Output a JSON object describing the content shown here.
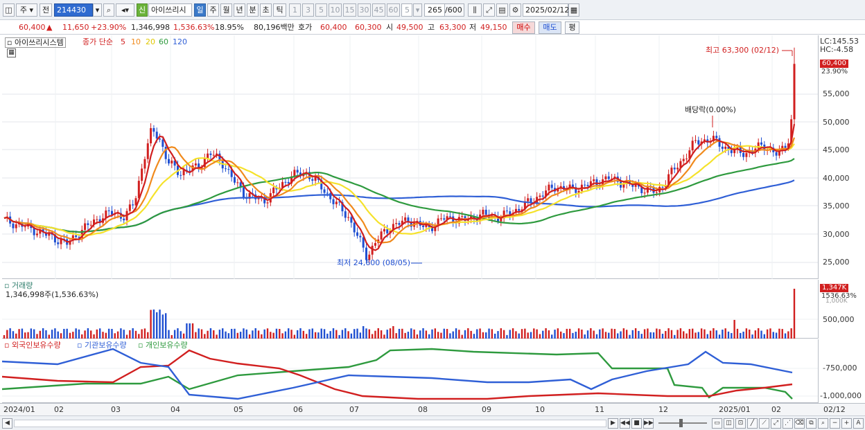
{
  "toolbar": {
    "period_ju": "주",
    "jeon": "전",
    "code": "214430",
    "sin": "신",
    "name": "아이쓰리시",
    "periods": [
      "일",
      "주",
      "월",
      "년",
      "분",
      "초",
      "틱"
    ],
    "intervals": [
      "1",
      "3",
      "5",
      "10",
      "15",
      "30",
      "45",
      "60"
    ],
    "interval_value": "5",
    "count": "265",
    "count_max": "/600",
    "date": "2025/02/12"
  },
  "quote": {
    "price": "60,400",
    "change_arrow": "▲",
    "change": "11,650",
    "change_pct": "+23.90%",
    "volume": "1,346,998",
    "volume_pct": "1,536.63%",
    "turnover": "18.95%",
    "amount": "80,196백만",
    "hoga_label": "호가",
    "hoga_ask": "60,400",
    "hoga_bid": "60,300",
    "open_label": "시",
    "open": "49,500",
    "high_label": "고",
    "high": "63,300",
    "low_label": "저",
    "low": "49,150",
    "buy_label": "매수",
    "sell_label": "매도",
    "avg_label": "평"
  },
  "price_panel": {
    "title": "아이쓰리시스템",
    "ma_label": "종가 단순",
    "ma_periods": [
      "5",
      "10",
      "20",
      "60",
      "120"
    ],
    "ma_colors": [
      "#d11f1f",
      "#f08a1c",
      "#f5e22b",
      "#2e9a3e",
      "#2f5fd6"
    ],
    "axis_lc": "LC:145.53",
    "axis_hc": "HC:-4.58",
    "current_tag": "60,400",
    "current_pct": "23.90%",
    "ticks": [
      "55,000",
      "50,000",
      "45,000",
      "40,000",
      "35,000",
      "30,000",
      "25,000"
    ],
    "annot_high": "최고 63,300 (02/12)",
    "annot_low": "최저 24,600 (08/05)",
    "annot_dividend": "배당락(0.00%)"
  },
  "volume_panel": {
    "title": "거래량",
    "value": "1,346,998주(1,536.63%)",
    "tag": "1,347K",
    "tag_pct": "1536.63%",
    "tick_hidden": "1,000K",
    "tick": "500,000"
  },
  "holdings_panel": {
    "legend": [
      "외국인보유수량",
      "기관보유수량",
      "개인보유수량"
    ],
    "colors": [
      "#d11f1f",
      "#2f5fd6",
      "#2e9a3e"
    ],
    "ticks": [
      "-750,000",
      "-1,000,000"
    ]
  },
  "dates": [
    "2024/01",
    "02",
    "03",
    "04",
    "05",
    "06",
    "07",
    "08",
    "09",
    "10",
    "11",
    "12",
    "2025/01",
    "02"
  ],
  "date_right": "02/12",
  "colors": {
    "up": "#d11f1f",
    "down": "#1f4fd1",
    "accent": "#3a79c9"
  }
}
